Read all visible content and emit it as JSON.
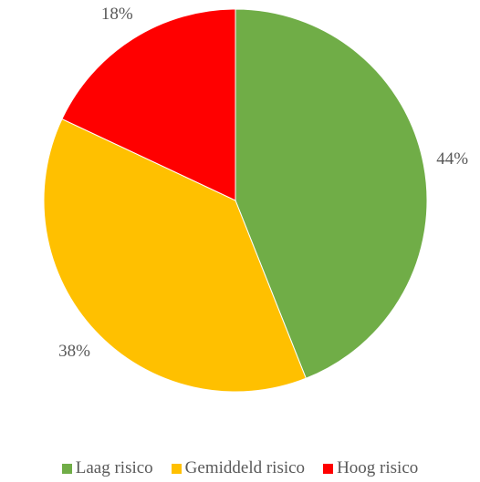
{
  "chart_data": {
    "type": "pie",
    "title": "",
    "legend_position": "bottom",
    "start_angle_deg": 0,
    "direction": "clockwise",
    "slices": [
      {
        "label": "Laag risico",
        "value": 44,
        "display": "44%",
        "color": "#70AD47"
      },
      {
        "label": "Gemiddeld risico",
        "value": 38,
        "display": "38%",
        "color": "#FFC000"
      },
      {
        "label": "Hoog risico",
        "value": 18,
        "display": "18%",
        "color": "#FF0000"
      }
    ]
  }
}
